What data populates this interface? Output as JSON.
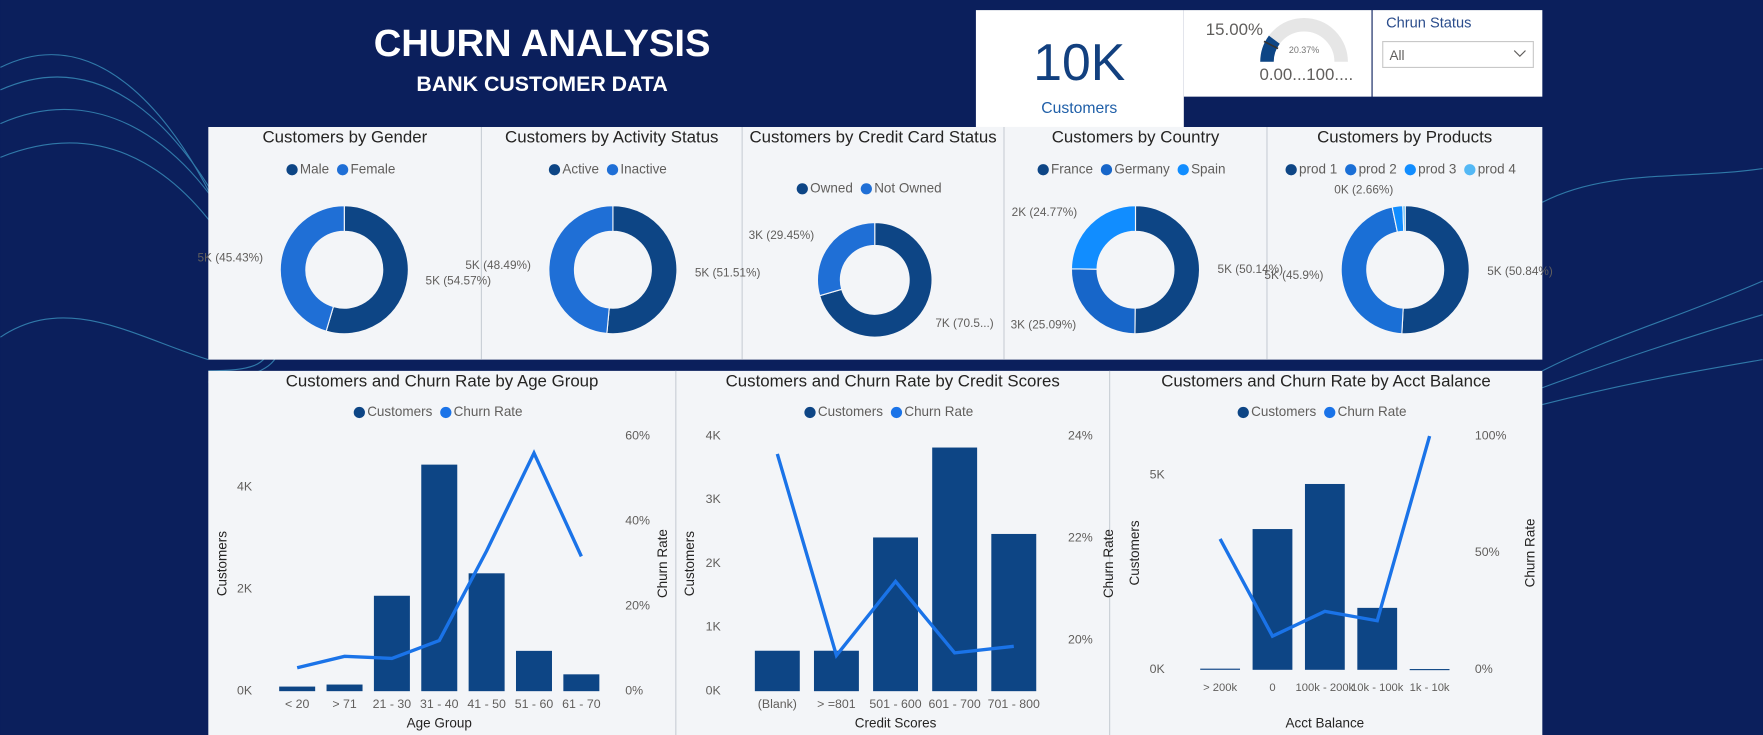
{
  "header": {
    "title": "CHURN ANALYSIS",
    "subtitle": "BANK CUSTOMER DATA"
  },
  "kpi": {
    "value": "10K",
    "label": "Customers"
  },
  "slicer": {
    "label": "Chrun Status",
    "selected": "All"
  },
  "chart_data": [
    {
      "type": "gauge",
      "values": [
        20.37
      ],
      "value_labels": [
        "20.37%"
      ],
      "target": 15,
      "target_label": "15.00%",
      "range_label": "0.00...100....",
      "ylim": [
        0,
        100
      ],
      "color": "#0d4585"
    },
    {
      "type": "pie",
      "donut": true,
      "title": "Customers by Gender",
      "categories": [
        "Male",
        "Female"
      ],
      "values": [
        54.57,
        45.43
      ],
      "value_labels": [
        "5K (54.57%)",
        "5K (45.43%)"
      ],
      "colors": [
        "#0d4585",
        "#1f6fd6"
      ]
    },
    {
      "type": "pie",
      "donut": true,
      "title": "Customers by Activity Status",
      "categories": [
        "Active",
        "Inactive"
      ],
      "values": [
        51.51,
        48.49
      ],
      "value_labels": [
        "5K (51.51%)",
        "5K (48.49%)"
      ],
      "colors": [
        "#0d4585",
        "#1f6fd6"
      ]
    },
    {
      "type": "pie",
      "donut": true,
      "title": "Customers by Credit Card Status",
      "categories": [
        "Owned",
        "Not Owned"
      ],
      "values": [
        70.55,
        29.45
      ],
      "value_labels": [
        "7K (70.5...)",
        "3K (29.45%)"
      ],
      "colors": [
        "#0d4585",
        "#1f6fd6"
      ]
    },
    {
      "type": "pie",
      "donut": true,
      "title": "Customers by Country",
      "categories": [
        "France",
        "Germany",
        "Spain"
      ],
      "values": [
        50.14,
        25.09,
        24.77
      ],
      "value_labels": [
        "5K (50.14%)",
        "3K (25.09%)",
        "2K (24.77%)"
      ],
      "colors": [
        "#0d4585",
        "#1766c9",
        "#118dff"
      ]
    },
    {
      "type": "pie",
      "donut": true,
      "title": "Customers by Products",
      "categories": [
        "prod 1",
        "prod 2",
        "prod 3",
        "prod 4"
      ],
      "values": [
        50.84,
        45.9,
        2.66,
        0.6
      ],
      "value_labels": [
        "5K (50.84%)",
        "5K (45.9%)",
        "0K (2.66%)",
        null
      ],
      "colors": [
        "#0d4585",
        "#1a6fd6",
        "#118dff",
        "#53b8f5"
      ]
    },
    {
      "type": "combo",
      "title": "Customers and Churn Rate by Age Group",
      "x_label": "Age Group",
      "y_label": "Customers",
      "y2_label": "Churn Rate",
      "categories": [
        "< 20",
        "> 71",
        "21 - 30",
        "31 - 40",
        "41 - 50",
        "51 - 60",
        "61 - 70"
      ],
      "series": [
        {
          "name": "Customers",
          "color": "#0d4585",
          "values": [
            90,
            130,
            1870,
            4440,
            2310,
            790,
            330
          ]
        },
        {
          "name": "Churn Rate",
          "color": "#1a73e8",
          "axis": "y2",
          "values": [
            5.5,
            8.2,
            7.7,
            11.9,
            33,
            56,
            31.7
          ]
        }
      ],
      "ylim": [
        0,
        5000
      ],
      "yticks": [
        {
          "value": 0,
          "label": "0K"
        },
        {
          "value": 2000,
          "label": "2K"
        },
        {
          "value": 4000,
          "label": "4K"
        }
      ],
      "y2lim": [
        0,
        60
      ],
      "y2ticks": [
        {
          "value": 0,
          "label": "0%"
        },
        {
          "value": 20,
          "label": "20%"
        },
        {
          "value": 40,
          "label": "40%"
        },
        {
          "value": 60,
          "label": "60%"
        }
      ]
    },
    {
      "type": "combo",
      "title": "Customers and Churn Rate by Credit Scores",
      "x_label": "Credit Scores",
      "y_label": "Customers",
      "y2_label": "Churn Rate",
      "categories": [
        "(Blank)",
        "> =801",
        "501 - 600",
        "601 - 700",
        "701 - 800"
      ],
      "series": [
        {
          "name": "Customers",
          "color": "#0d4585",
          "values": [
            634,
            634,
            2410,
            3820,
            2465
          ]
        },
        {
          "name": "Churn Rate",
          "color": "#1a73e8",
          "axis": "y2",
          "values": [
            23.65,
            19.7,
            21.15,
            19.75,
            19.88
          ]
        }
      ],
      "ylim": [
        0,
        4000
      ],
      "yticks": [
        {
          "value": 0,
          "label": "0K"
        },
        {
          "value": 1000,
          "label": "1K"
        },
        {
          "value": 2000,
          "label": "2K"
        },
        {
          "value": 3000,
          "label": "3K"
        },
        {
          "value": 4000,
          "label": "4K"
        }
      ],
      "y2lim": [
        19,
        24
      ],
      "y2ticks": [
        {
          "value": 20,
          "label": "20%"
        },
        {
          "value": 22,
          "label": "22%"
        },
        {
          "value": 24,
          "label": "24%"
        }
      ]
    },
    {
      "type": "combo",
      "title": "Customers and Churn Rate by Acct Balance",
      "x_label": "Acct Balance",
      "y_label": "Customers",
      "y2_label": "Churn Rate",
      "categories": [
        "> 200k",
        "0",
        "100k - 200k",
        "10k - 100k",
        "1k - 10k"
      ],
      "series": [
        {
          "name": "Customers",
          "color": "#0d4585",
          "values": [
            30,
            3613,
            4770,
            1590,
            20
          ]
        },
        {
          "name": "Churn Rate",
          "color": "#1a73e8",
          "axis": "y2",
          "values": [
            56,
            14.4,
            25,
            21,
            100
          ]
        }
      ],
      "ylim": [
        0,
        6000
      ],
      "yticks": [
        {
          "value": 0,
          "label": "0K"
        },
        {
          "value": 5000,
          "label": "5K"
        }
      ],
      "y2lim": [
        0,
        100
      ],
      "y2ticks": [
        {
          "value": 0,
          "label": "0%"
        },
        {
          "value": 50,
          "label": "50%"
        },
        {
          "value": 100,
          "label": "100%"
        }
      ]
    }
  ]
}
